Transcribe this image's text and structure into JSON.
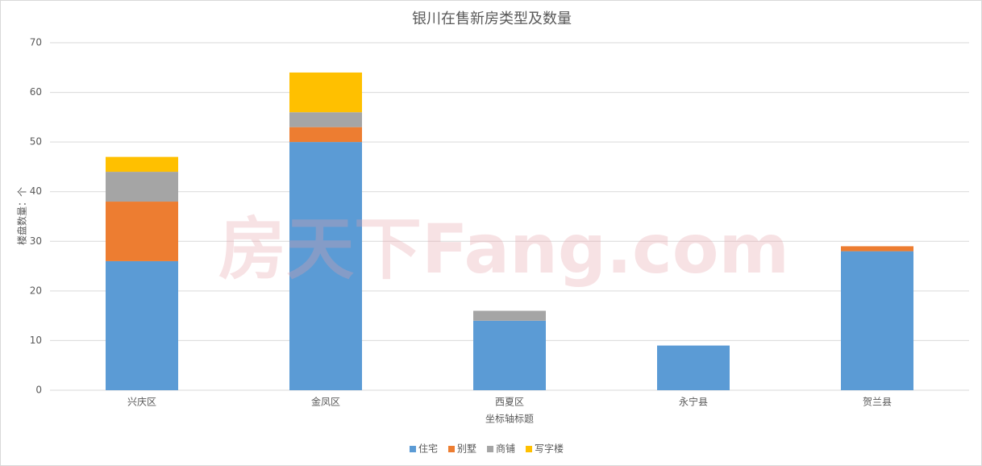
{
  "chart_data": {
    "type": "stacked_bar",
    "title": "银川在售新房类型及数量",
    "watermark": "房天下Fang.com",
    "y_label": "楼盘数量：个",
    "x_label": "坐标轴标题",
    "categories": [
      "兴庆区",
      "金凤区",
      "西夏区",
      "永宁县",
      "贺兰县"
    ],
    "series": [
      {
        "name": "住宅",
        "color": "#5b9bd5",
        "values": [
          26,
          50,
          14,
          9,
          28
        ]
      },
      {
        "name": "别墅",
        "color": "#ed7d31",
        "values": [
          12,
          3,
          0,
          0,
          1
        ]
      },
      {
        "name": "商铺",
        "color": "#a5a5a5",
        "values": [
          6,
          3,
          2,
          0,
          0
        ]
      },
      {
        "name": "写字楼",
        "color": "#ffc000",
        "values": [
          3,
          8,
          0,
          0,
          0
        ]
      }
    ],
    "ylim": [
      0,
      70
    ],
    "yticks": [
      0,
      10,
      20,
      30,
      40,
      50,
      60,
      70
    ],
    "grid": true,
    "legend": "bottom"
  }
}
